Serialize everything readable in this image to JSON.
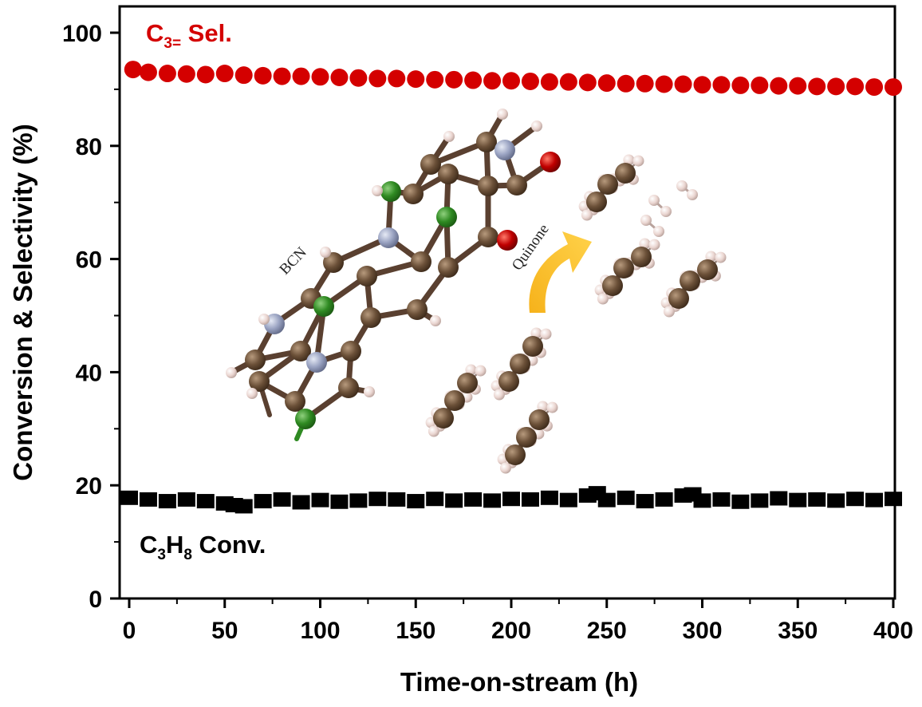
{
  "chart_data": {
    "type": "scatter",
    "xlabel": "Time-on-stream (h)",
    "ylabel": "Conversion & Selectivity (%)",
    "xlim": [
      0,
      400
    ],
    "ylim": [
      0,
      100
    ],
    "xticks": [
      0,
      50,
      100,
      150,
      200,
      250,
      300,
      350,
      400
    ],
    "yticks": [
      0,
      20,
      40,
      60,
      80,
      100
    ],
    "grid": false,
    "series": [
      {
        "name": "C3= Sel.",
        "label_main": "C",
        "label_sub": "3=",
        "label_tail": " Sel.",
        "color": "#d40000",
        "marker": "circle",
        "x": [
          2,
          10,
          20,
          30,
          40,
          50,
          60,
          70,
          80,
          90,
          100,
          110,
          120,
          130,
          140,
          150,
          160,
          170,
          180,
          190,
          200,
          210,
          220,
          230,
          240,
          250,
          260,
          270,
          280,
          290,
          300,
          310,
          320,
          330,
          340,
          350,
          360,
          370,
          380,
          390,
          400
        ],
        "y": [
          93.5,
          93.0,
          92.8,
          92.7,
          92.6,
          92.8,
          92.5,
          92.4,
          92.3,
          92.3,
          92.2,
          92.1,
          92.0,
          91.9,
          91.9,
          91.8,
          91.7,
          91.7,
          91.6,
          91.5,
          91.5,
          91.4,
          91.3,
          91.3,
          91.2,
          91.1,
          91.0,
          91.0,
          90.9,
          90.9,
          90.8,
          90.8,
          90.7,
          90.7,
          90.6,
          90.6,
          90.5,
          90.5,
          90.5,
          90.4,
          90.4
        ]
      },
      {
        "name": "C3H8 Conv.",
        "label_main": "C",
        "label_sub1": "3",
        "label_mid": "H",
        "label_sub2": "8",
        "label_tail": " Conv.",
        "color": "#000000",
        "marker": "square",
        "x": [
          0,
          10,
          20,
          30,
          40,
          50,
          55,
          60,
          70,
          80,
          90,
          100,
          110,
          120,
          130,
          140,
          150,
          160,
          170,
          180,
          190,
          200,
          210,
          220,
          230,
          240,
          245,
          250,
          260,
          270,
          280,
          290,
          295,
          300,
          310,
          320,
          330,
          340,
          350,
          360,
          370,
          380,
          390,
          400
        ],
        "y": [
          17.8,
          17.5,
          17.2,
          17.5,
          17.2,
          16.8,
          16.5,
          16.3,
          17.2,
          17.5,
          17.0,
          17.4,
          17.1,
          17.3,
          17.6,
          17.5,
          17.2,
          17.6,
          17.3,
          17.5,
          17.3,
          17.6,
          17.5,
          17.8,
          17.4,
          18.2,
          18.6,
          17.4,
          17.8,
          17.2,
          17.5,
          18.2,
          18.4,
          17.3,
          17.5,
          17.1,
          17.3,
          17.7,
          17.4,
          17.5,
          17.3,
          17.6,
          17.4,
          17.6
        ]
      }
    ],
    "annotations": {
      "catalyst_label": "BCN",
      "arrow_label": "Quinone"
    }
  }
}
